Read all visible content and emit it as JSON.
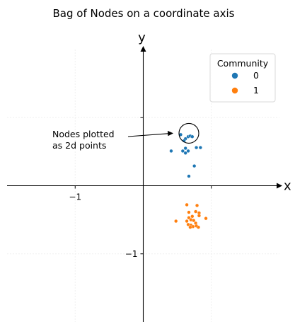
{
  "chart_data": {
    "type": "scatter",
    "title": "Bag of Nodes on a coordinate axis",
    "xlabel": "x",
    "ylabel": "y",
    "xlim": [
      -2.0,
      2.0
    ],
    "ylim": [
      -2.0,
      2.0
    ],
    "x_ticks": [
      {
        "value": -1,
        "label": "−1"
      },
      {
        "value": 1,
        "label": ""
      }
    ],
    "y_ticks": [
      {
        "value": -1,
        "label": "−1"
      },
      {
        "value": 1,
        "label": ""
      }
    ],
    "grid": true,
    "legend": {
      "title": "Community",
      "placement": "top-right"
    },
    "series": [
      {
        "name": "0",
        "color": "#1f77b4",
        "points": [
          [
            0.55,
            0.75
          ],
          [
            0.62,
            0.69
          ],
          [
            0.66,
            0.72
          ],
          [
            0.69,
            0.73
          ],
          [
            0.72,
            0.72
          ],
          [
            0.6,
            0.66
          ],
          [
            0.78,
            0.56
          ],
          [
            0.84,
            0.56
          ],
          [
            0.62,
            0.55
          ],
          [
            0.58,
            0.51
          ],
          [
            0.66,
            0.51
          ],
          [
            0.62,
            0.48
          ],
          [
            0.41,
            0.51
          ],
          [
            0.75,
            0.29
          ],
          [
            0.67,
            0.14
          ]
        ]
      },
      {
        "name": "1",
        "color": "#ff7f0e",
        "points": [
          [
            0.64,
            -0.28
          ],
          [
            0.79,
            -0.29
          ],
          [
            0.67,
            -0.39
          ],
          [
            0.77,
            -0.38
          ],
          [
            0.82,
            -0.4
          ],
          [
            0.72,
            -0.45
          ],
          [
            0.82,
            -0.44
          ],
          [
            0.67,
            -0.47
          ],
          [
            0.92,
            -0.48
          ],
          [
            0.7,
            -0.5
          ],
          [
            0.74,
            -0.51
          ],
          [
            0.64,
            -0.52
          ],
          [
            0.48,
            -0.52
          ],
          [
            0.77,
            -0.55
          ],
          [
            0.66,
            -0.57
          ],
          [
            0.7,
            -0.58
          ],
          [
            0.78,
            -0.59
          ],
          [
            0.73,
            -0.6
          ],
          [
            0.81,
            -0.61
          ],
          [
            0.69,
            -0.61
          ]
        ]
      }
    ],
    "annotations": [
      {
        "text_lines": [
          "Nodes plotted",
          "as 2d points"
        ],
        "target": [
          0.67,
          0.77
        ],
        "highlight_circle_center": [
          0.67,
          0.77
        ]
      }
    ]
  }
}
